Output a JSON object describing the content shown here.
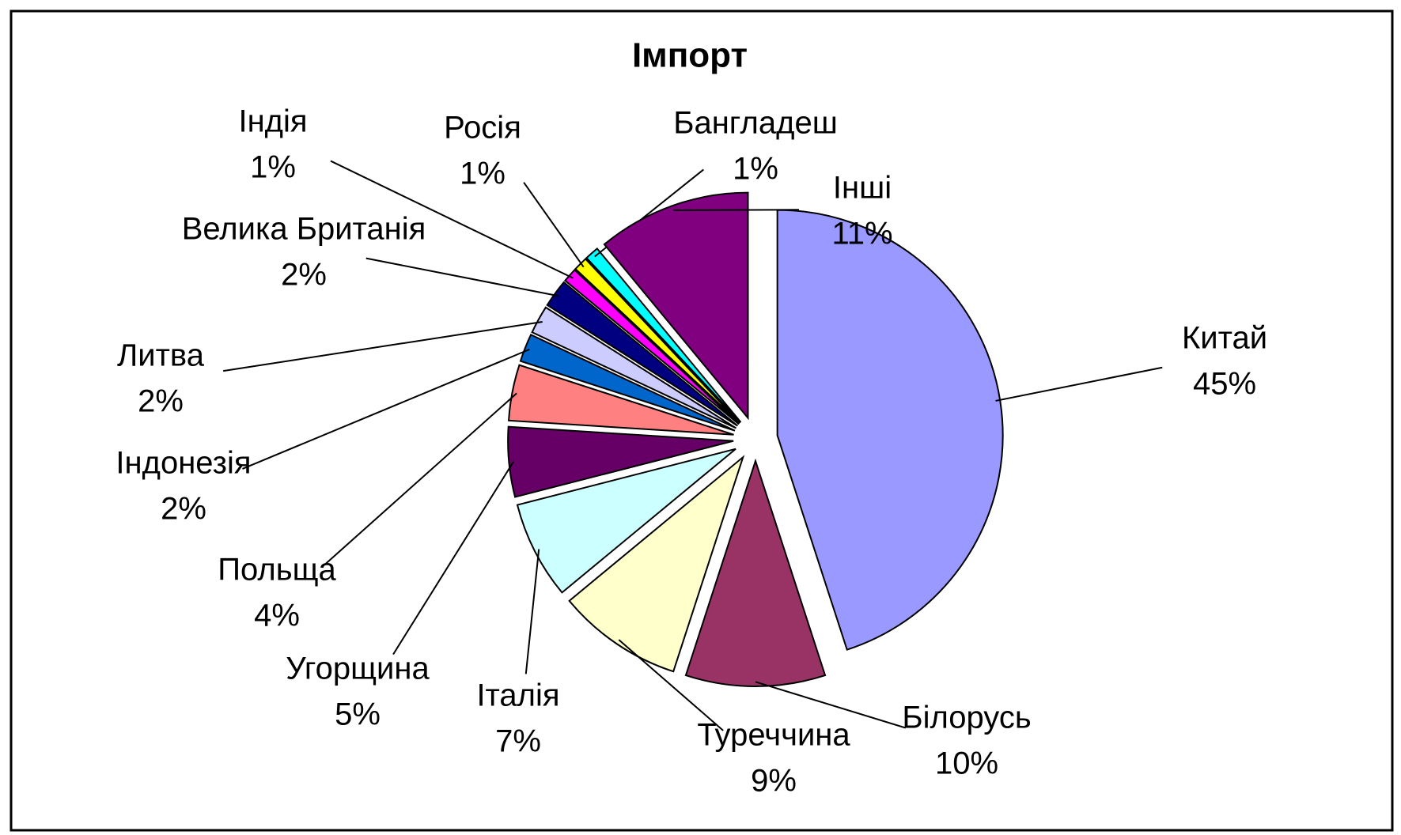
{
  "chart_data": {
    "type": "pie",
    "title": "Імпорт",
    "categories": [
      "Китай",
      "Білорусь",
      "Туреччина",
      "Італія",
      "Угорщина",
      "Польща",
      "Індонезія",
      "Литва",
      "Велика Британія",
      "Індія",
      "Росія",
      "Бангладеш",
      "Інші"
    ],
    "values": [
      45,
      10,
      9,
      7,
      5,
      4,
      2,
      2,
      2,
      1,
      1,
      1,
      11
    ],
    "value_labels": [
      "45%",
      "10%",
      "9%",
      "7%",
      "5%",
      "4%",
      "2%",
      "2%",
      "2%",
      "1%",
      "1%",
      "1%",
      "11%"
    ],
    "colors": [
      "#9999ff",
      "#993366",
      "#ffffcc",
      "#ccffff",
      "#660066",
      "#ff8080",
      "#0066cc",
      "#ccccff",
      "#000080",
      "#ff00ff",
      "#ffff00",
      "#00ffff",
      "#800080"
    ]
  }
}
